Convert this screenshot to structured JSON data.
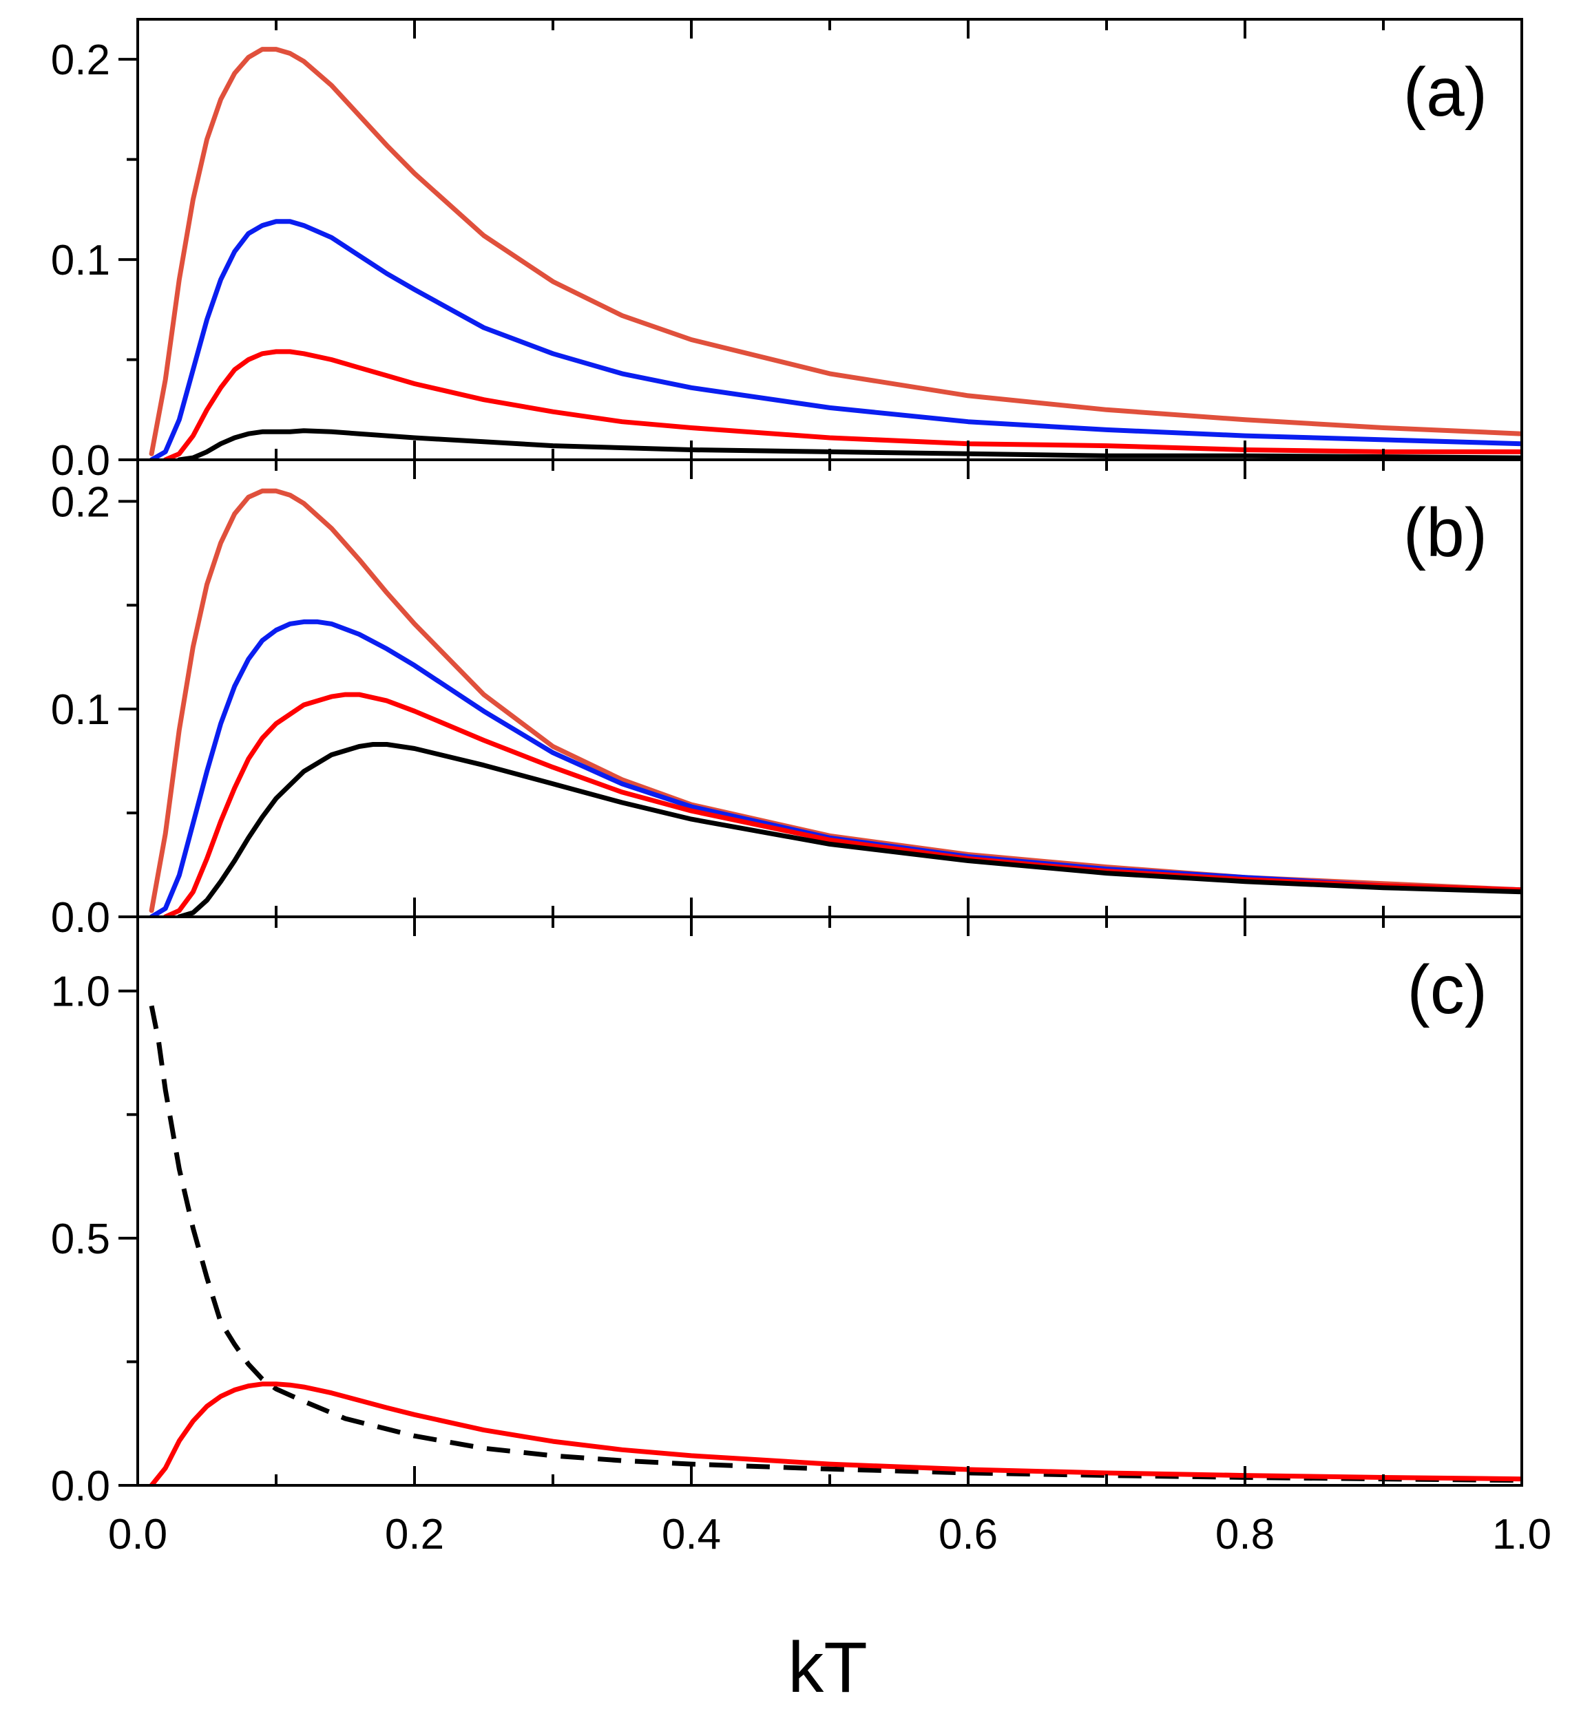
{
  "chart_data": [
    {
      "type": "line",
      "panel_label": "(a)",
      "xlabel": "kT",
      "ylabel": "",
      "xlim": [
        0.0,
        1.0
      ],
      "ylim": [
        0.0,
        0.22
      ],
      "x_ticks": [
        "0.0",
        "0.2",
        "0.4",
        "0.6",
        "0.8",
        "1.0"
      ],
      "y_ticks": [
        {
          "value": 0.0,
          "label": "0.0"
        },
        {
          "value": 0.1,
          "label": "0.1"
        },
        {
          "value": 0.2,
          "label": "0.2"
        }
      ],
      "series": [
        {
          "name": "orange-red",
          "color": "#e0503c",
          "style": "solid",
          "x": [
            0.01,
            0.02,
            0.03,
            0.04,
            0.05,
            0.06,
            0.07,
            0.08,
            0.09,
            0.1,
            0.11,
            0.12,
            0.14,
            0.16,
            0.18,
            0.2,
            0.25,
            0.3,
            0.35,
            0.4,
            0.5,
            0.6,
            0.7,
            0.8,
            0.9,
            1.0
          ],
          "y": [
            0.003,
            0.04,
            0.09,
            0.13,
            0.16,
            0.18,
            0.193,
            0.201,
            0.205,
            0.205,
            0.203,
            0.199,
            0.187,
            0.172,
            0.157,
            0.143,
            0.112,
            0.089,
            0.072,
            0.06,
            0.043,
            0.032,
            0.025,
            0.02,
            0.016,
            0.013
          ]
        },
        {
          "name": "blue",
          "color": "#0a1ef0",
          "style": "solid",
          "x": [
            0.01,
            0.02,
            0.03,
            0.04,
            0.05,
            0.06,
            0.07,
            0.08,
            0.09,
            0.1,
            0.11,
            0.12,
            0.14,
            0.16,
            0.18,
            0.2,
            0.25,
            0.3,
            0.35,
            0.4,
            0.5,
            0.6,
            0.7,
            0.8,
            0.9,
            1.0
          ],
          "y": [
            0.0,
            0.004,
            0.02,
            0.045,
            0.07,
            0.09,
            0.104,
            0.113,
            0.117,
            0.119,
            0.119,
            0.117,
            0.111,
            0.102,
            0.093,
            0.085,
            0.066,
            0.053,
            0.043,
            0.036,
            0.026,
            0.019,
            0.015,
            0.012,
            0.01,
            0.008
          ]
        },
        {
          "name": "red",
          "color": "#ff0000",
          "style": "solid",
          "x": [
            0.02,
            0.03,
            0.04,
            0.05,
            0.06,
            0.07,
            0.08,
            0.09,
            0.1,
            0.11,
            0.12,
            0.14,
            0.16,
            0.18,
            0.2,
            0.25,
            0.3,
            0.35,
            0.4,
            0.5,
            0.6,
            0.7,
            0.8,
            0.9,
            1.0
          ],
          "y": [
            0.0,
            0.003,
            0.012,
            0.025,
            0.036,
            0.045,
            0.05,
            0.053,
            0.054,
            0.054,
            0.053,
            0.05,
            0.046,
            0.042,
            0.038,
            0.03,
            0.024,
            0.019,
            0.016,
            0.011,
            0.008,
            0.007,
            0.005,
            0.004,
            0.004
          ]
        },
        {
          "name": "black",
          "color": "#000000",
          "style": "solid",
          "x": [
            0.03,
            0.04,
            0.05,
            0.06,
            0.07,
            0.08,
            0.09,
            0.1,
            0.11,
            0.12,
            0.14,
            0.16,
            0.18,
            0.2,
            0.25,
            0.3,
            0.4,
            0.5,
            0.6,
            0.7,
            0.8,
            0.9,
            1.0
          ],
          "y": [
            0.0,
            0.001,
            0.004,
            0.008,
            0.011,
            0.013,
            0.014,
            0.014,
            0.014,
            0.0145,
            0.014,
            0.013,
            0.012,
            0.011,
            0.009,
            0.007,
            0.005,
            0.004,
            0.003,
            0.002,
            0.002,
            0.0015,
            0.001
          ]
        }
      ]
    },
    {
      "type": "line",
      "panel_label": "(b)",
      "xlabel": "kT",
      "ylabel": "",
      "xlim": [
        0.0,
        1.0
      ],
      "ylim": [
        0.0,
        0.22
      ],
      "x_ticks": [
        "0.0",
        "0.2",
        "0.4",
        "0.6",
        "0.8",
        "1.0"
      ],
      "y_ticks": [
        {
          "value": 0.0,
          "label": "0.0"
        },
        {
          "value": 0.1,
          "label": "0.1"
        },
        {
          "value": 0.2,
          "label": "0.2"
        }
      ],
      "series": [
        {
          "name": "orange-red",
          "color": "#e0503c",
          "style": "solid",
          "x": [
            0.01,
            0.02,
            0.03,
            0.04,
            0.05,
            0.06,
            0.07,
            0.08,
            0.09,
            0.1,
            0.11,
            0.12,
            0.14,
            0.16,
            0.18,
            0.2,
            0.25,
            0.3,
            0.35,
            0.4,
            0.5,
            0.6,
            0.7,
            0.8,
            0.9,
            1.0
          ],
          "y": [
            0.003,
            0.04,
            0.09,
            0.13,
            0.16,
            0.18,
            0.194,
            0.202,
            0.205,
            0.205,
            0.203,
            0.199,
            0.187,
            0.172,
            0.156,
            0.141,
            0.107,
            0.082,
            0.066,
            0.054,
            0.039,
            0.03,
            0.024,
            0.019,
            0.016,
            0.013
          ]
        },
        {
          "name": "blue",
          "color": "#0a1ef0",
          "style": "solid",
          "x": [
            0.01,
            0.02,
            0.03,
            0.04,
            0.05,
            0.06,
            0.07,
            0.08,
            0.09,
            0.1,
            0.11,
            0.12,
            0.13,
            0.14,
            0.16,
            0.18,
            0.2,
            0.25,
            0.3,
            0.35,
            0.4,
            0.5,
            0.6,
            0.7,
            0.8,
            0.9,
            1.0
          ],
          "y": [
            0.0,
            0.004,
            0.02,
            0.045,
            0.07,
            0.093,
            0.111,
            0.124,
            0.133,
            0.138,
            0.141,
            0.142,
            0.142,
            0.141,
            0.136,
            0.129,
            0.121,
            0.099,
            0.079,
            0.064,
            0.053,
            0.038,
            0.029,
            0.023,
            0.019,
            0.015,
            0.013
          ]
        },
        {
          "name": "red",
          "color": "#ff0000",
          "style": "solid",
          "x": [
            0.02,
            0.03,
            0.04,
            0.05,
            0.06,
            0.07,
            0.08,
            0.09,
            0.1,
            0.12,
            0.14,
            0.15,
            0.16,
            0.18,
            0.2,
            0.25,
            0.3,
            0.35,
            0.4,
            0.5,
            0.6,
            0.7,
            0.8,
            0.9,
            1.0
          ],
          "y": [
            0.0,
            0.003,
            0.012,
            0.028,
            0.046,
            0.062,
            0.076,
            0.086,
            0.093,
            0.102,
            0.106,
            0.107,
            0.107,
            0.104,
            0.099,
            0.085,
            0.072,
            0.06,
            0.051,
            0.037,
            0.028,
            0.022,
            0.018,
            0.015,
            0.013
          ]
        },
        {
          "name": "black",
          "color": "#000000",
          "style": "solid",
          "x": [
            0.03,
            0.04,
            0.05,
            0.06,
            0.07,
            0.08,
            0.09,
            0.1,
            0.12,
            0.14,
            0.16,
            0.17,
            0.18,
            0.2,
            0.25,
            0.3,
            0.35,
            0.4,
            0.5,
            0.6,
            0.7,
            0.8,
            0.9,
            1.0
          ],
          "y": [
            0.0,
            0.002,
            0.008,
            0.017,
            0.027,
            0.038,
            0.048,
            0.057,
            0.07,
            0.078,
            0.082,
            0.083,
            0.083,
            0.081,
            0.073,
            0.064,
            0.055,
            0.047,
            0.035,
            0.027,
            0.021,
            0.017,
            0.014,
            0.012
          ]
        }
      ]
    },
    {
      "type": "line",
      "panel_label": "(c)",
      "xlabel": "kT",
      "ylabel": "",
      "xlim": [
        0.0,
        1.0
      ],
      "ylim": [
        0.0,
        1.15
      ],
      "x_ticks": [
        "0.0",
        "0.2",
        "0.4",
        "0.6",
        "0.8",
        "1.0"
      ],
      "y_ticks": [
        {
          "value": 0.0,
          "label": "0.0"
        },
        {
          "value": 0.5,
          "label": "0.5"
        },
        {
          "value": 1.0,
          "label": "1.0"
        }
      ],
      "series": [
        {
          "name": "black dashed",
          "color": "#000000",
          "style": "dashed",
          "x": [
            0.01,
            0.015,
            0.02,
            0.025,
            0.03,
            0.04,
            0.05,
            0.06,
            0.07,
            0.08,
            0.09,
            0.1,
            0.12,
            0.15,
            0.2,
            0.25,
            0.3,
            0.35,
            0.4,
            0.5,
            0.6,
            0.7,
            0.8,
            0.9,
            1.0
          ],
          "y": [
            0.97,
            0.9,
            0.8,
            0.72,
            0.64,
            0.52,
            0.42,
            0.33,
            0.285,
            0.245,
            0.215,
            0.195,
            0.17,
            0.135,
            0.1,
            0.075,
            0.06,
            0.05,
            0.043,
            0.033,
            0.025,
            0.02,
            0.016,
            0.013,
            0.01
          ]
        },
        {
          "name": "red",
          "color": "#ff0000",
          "style": "solid",
          "x": [
            0.01,
            0.02,
            0.03,
            0.04,
            0.05,
            0.06,
            0.07,
            0.08,
            0.09,
            0.1,
            0.11,
            0.12,
            0.14,
            0.16,
            0.18,
            0.2,
            0.25,
            0.3,
            0.35,
            0.4,
            0.5,
            0.6,
            0.7,
            0.8,
            0.9,
            1.0
          ],
          "y": [
            0.0,
            0.035,
            0.09,
            0.13,
            0.16,
            0.18,
            0.193,
            0.201,
            0.205,
            0.205,
            0.203,
            0.199,
            0.187,
            0.172,
            0.157,
            0.143,
            0.112,
            0.089,
            0.072,
            0.06,
            0.043,
            0.032,
            0.025,
            0.02,
            0.016,
            0.013
          ]
        }
      ]
    }
  ]
}
